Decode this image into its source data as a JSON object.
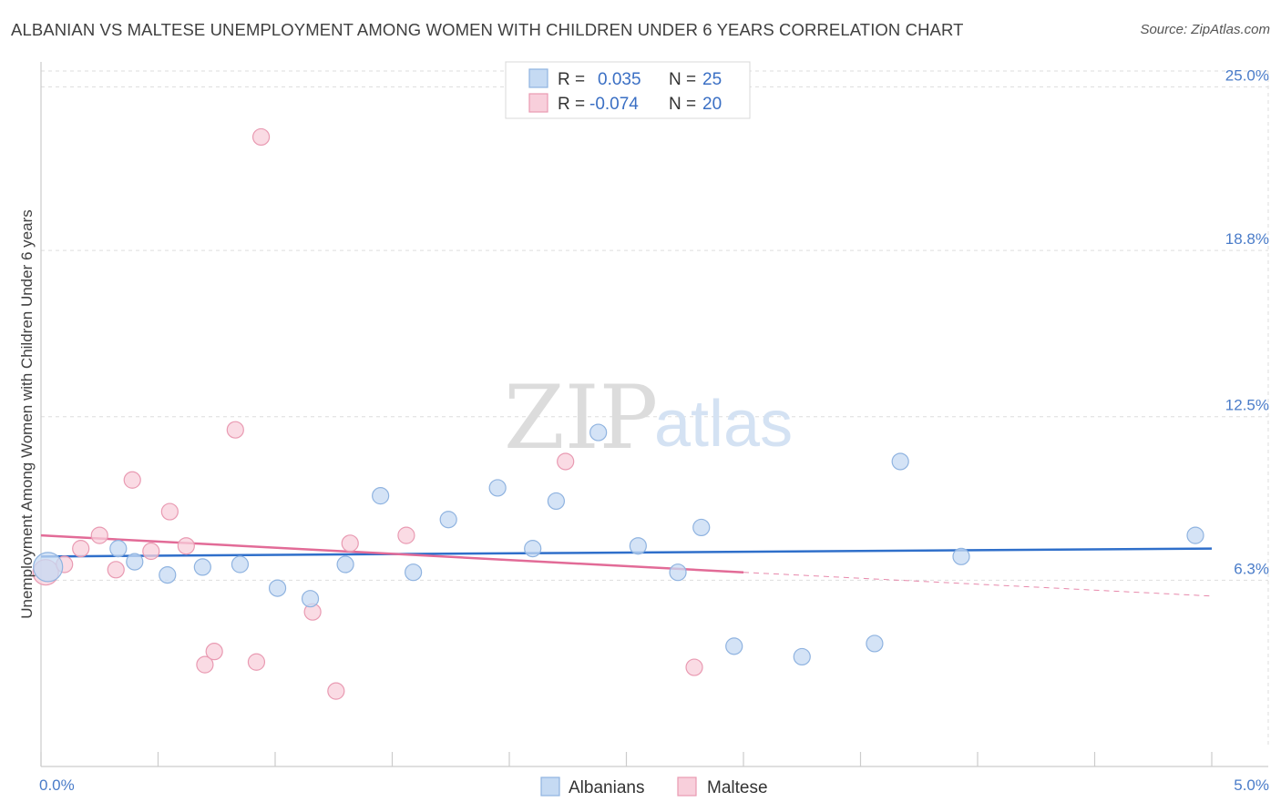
{
  "header": {
    "title": "ALBANIAN VS MALTESE UNEMPLOYMENT AMONG WOMEN WITH CHILDREN UNDER 6 YEARS CORRELATION CHART",
    "source": "Source: ZipAtlas.com"
  },
  "watermark": {
    "zip": "ZIP",
    "atlas": "atlas"
  },
  "legend": {
    "rows": [
      {
        "r_label": "R =",
        "r_value": "0.035",
        "n_label": "N =",
        "n_value": "25"
      },
      {
        "r_label": "R =",
        "r_value": "-0.074",
        "n_label": "N =",
        "n_value": "20"
      }
    ]
  },
  "bottom_legend": {
    "albanians": "Albanians",
    "maltese": "Maltese"
  },
  "colors": {
    "albanians_fill": "#c5daf3",
    "albanians_stroke": "#8fb3e0",
    "albanians_line": "#2f6fca",
    "maltese_fill": "#f8cfdb",
    "maltese_stroke": "#e99ab2",
    "maltese_line": "#e26b97",
    "tick_text": "#4a7cc9",
    "grid": "#dddddd"
  },
  "chart_data": {
    "type": "scatter",
    "title": "ALBANIAN VS MALTESE UNEMPLOYMENT AMONG WOMEN WITH CHILDREN UNDER 6 YEARS CORRELATION CHART",
    "xlabel": "",
    "ylabel": "Unemployment Among Women with Children Under 6 years",
    "xlim": [
      0,
      5
    ],
    "ylim": [
      0,
      25.6
    ],
    "x_tick_labels": [
      "0.0%",
      "5.0%"
    ],
    "y_tick_labels": [
      "6.3%",
      "12.5%",
      "18.8%",
      "25.0%"
    ],
    "y_ticks": [
      6.3,
      12.5,
      18.8,
      25.0
    ],
    "grid": true,
    "legend_position": "top-center",
    "series": [
      {
        "name": "Albanians",
        "r": 0.035,
        "n": 25,
        "points": [
          {
            "x": 0.03,
            "y": 6.8,
            "size": 16
          },
          {
            "x": 0.33,
            "y": 7.5,
            "size": 9
          },
          {
            "x": 0.4,
            "y": 7.0,
            "size": 9
          },
          {
            "x": 0.54,
            "y": 6.5,
            "size": 9
          },
          {
            "x": 0.69,
            "y": 6.8,
            "size": 9
          },
          {
            "x": 0.85,
            "y": 6.9,
            "size": 9
          },
          {
            "x": 1.01,
            "y": 6.0,
            "size": 9
          },
          {
            "x": 1.15,
            "y": 5.6,
            "size": 9
          },
          {
            "x": 1.3,
            "y": 6.9,
            "size": 9
          },
          {
            "x": 1.45,
            "y": 9.5,
            "size": 9
          },
          {
            "x": 1.59,
            "y": 6.6,
            "size": 9
          },
          {
            "x": 1.74,
            "y": 8.6,
            "size": 9
          },
          {
            "x": 1.95,
            "y": 9.8,
            "size": 9
          },
          {
            "x": 2.1,
            "y": 7.5,
            "size": 9
          },
          {
            "x": 2.2,
            "y": 9.3,
            "size": 9
          },
          {
            "x": 2.38,
            "y": 11.9,
            "size": 9
          },
          {
            "x": 2.55,
            "y": 7.6,
            "size": 9
          },
          {
            "x": 2.72,
            "y": 6.6,
            "size": 9
          },
          {
            "x": 2.82,
            "y": 8.3,
            "size": 9
          },
          {
            "x": 2.96,
            "y": 3.8,
            "size": 9
          },
          {
            "x": 3.25,
            "y": 3.4,
            "size": 9
          },
          {
            "x": 3.56,
            "y": 3.9,
            "size": 9
          },
          {
            "x": 3.67,
            "y": 10.8,
            "size": 9
          },
          {
            "x": 3.93,
            "y": 7.2,
            "size": 9
          },
          {
            "x": 4.93,
            "y": 8.0,
            "size": 9
          }
        ],
        "trend": {
          "x0": 0,
          "y0": 7.2,
          "x1": 5,
          "y1": 7.5
        }
      },
      {
        "name": "Maltese",
        "r": -0.074,
        "n": 20,
        "points": [
          {
            "x": 0.02,
            "y": 6.6,
            "size": 14
          },
          {
            "x": 0.1,
            "y": 6.9,
            "size": 9
          },
          {
            "x": 0.17,
            "y": 7.5,
            "size": 9
          },
          {
            "x": 0.25,
            "y": 8.0,
            "size": 9
          },
          {
            "x": 0.32,
            "y": 6.7,
            "size": 9
          },
          {
            "x": 0.39,
            "y": 10.1,
            "size": 9
          },
          {
            "x": 0.47,
            "y": 7.4,
            "size": 9
          },
          {
            "x": 0.55,
            "y": 8.9,
            "size": 9
          },
          {
            "x": 0.62,
            "y": 7.6,
            "size": 9
          },
          {
            "x": 0.7,
            "y": 3.1,
            "size": 9
          },
          {
            "x": 0.74,
            "y": 3.6,
            "size": 9
          },
          {
            "x": 0.83,
            "y": 12.0,
            "size": 9
          },
          {
            "x": 0.92,
            "y": 3.2,
            "size": 9
          },
          {
            "x": 0.94,
            "y": 23.1,
            "size": 9
          },
          {
            "x": 1.16,
            "y": 5.1,
            "size": 9
          },
          {
            "x": 1.26,
            "y": 2.1,
            "size": 9
          },
          {
            "x": 1.32,
            "y": 7.7,
            "size": 9
          },
          {
            "x": 1.56,
            "y": 8.0,
            "size": 9
          },
          {
            "x": 2.24,
            "y": 10.8,
            "size": 9
          },
          {
            "x": 2.79,
            "y": 3.0,
            "size": 9
          }
        ],
        "trend": {
          "x0": 0,
          "y0": 8.0,
          "x1": 3.0,
          "y1": 6.6
        },
        "trend_dashed": {
          "x0": 3.0,
          "y0": 6.6,
          "x1": 5,
          "y1": 5.7
        }
      }
    ]
  }
}
